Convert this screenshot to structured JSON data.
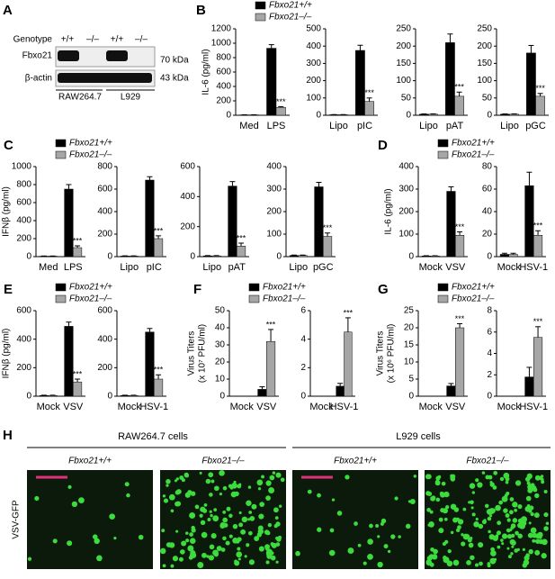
{
  "blot": {
    "panel": "A",
    "row_labels": [
      "Genotype",
      "Fbxo21",
      "β-actin"
    ],
    "genotypes": [
      "+/+",
      "–/–",
      "+/+",
      "–/–"
    ],
    "markers": [
      "70 kDa",
      "43 kDa"
    ],
    "cell_lines": [
      "RAW264.7",
      "L929"
    ]
  },
  "microscopy": {
    "panel": "H",
    "cell_lines": [
      "RAW264.7 cells",
      "L929 cells"
    ],
    "genotypes": [
      "Fbxo21+/+",
      "Fbxo21–/–",
      "Fbxo21+/+",
      "Fbxo21–/–"
    ],
    "row_label": "VSV-GFP"
  },
  "chart_data": [
    {
      "type": "bar",
      "panel": "B",
      "ylabel": "IL-6 (pg/ml)",
      "legend": true,
      "categories": [
        "Med",
        "LPS"
      ],
      "ylim": [
        0,
        1200
      ],
      "yticks": [
        0,
        200,
        400,
        600,
        800,
        1000,
        1200
      ],
      "series": [
        {
          "name": "Fbxo21+/+",
          "color": "#000000",
          "values": [
            5,
            930
          ],
          "errors": [
            2,
            50
          ]
        },
        {
          "name": "Fbxo21–/–",
          "color": "#a6a6a6",
          "values": [
            5,
            110
          ],
          "errors": [
            2,
            10
          ],
          "significance": [
            null,
            "***"
          ]
        }
      ]
    },
    {
      "type": "bar",
      "categories": [
        "Lipo",
        "pIC"
      ],
      "ylim": [
        0,
        500
      ],
      "yticks": [
        0,
        100,
        200,
        300,
        400,
        500
      ],
      "series": [
        {
          "color": "#000000",
          "values": [
            3,
            375
          ],
          "errors": [
            1,
            30
          ]
        },
        {
          "color": "#a6a6a6",
          "values": [
            3,
            80
          ],
          "errors": [
            1,
            20
          ],
          "significance": [
            null,
            "***"
          ]
        }
      ]
    },
    {
      "type": "bar",
      "categories": [
        "Lipo",
        "pAT"
      ],
      "ylim": [
        0,
        250
      ],
      "yticks": [
        0,
        50,
        100,
        150,
        200,
        250
      ],
      "series": [
        {
          "color": "#000000",
          "values": [
            3,
            210
          ],
          "errors": [
            1,
            25
          ]
        },
        {
          "color": "#a6a6a6",
          "values": [
            3,
            55
          ],
          "errors": [
            1,
            12
          ],
          "significance": [
            null,
            "***"
          ]
        }
      ]
    },
    {
      "type": "bar",
      "categories": [
        "Lipo",
        "pGC"
      ],
      "ylim": [
        0,
        250
      ],
      "yticks": [
        0,
        50,
        100,
        150,
        200,
        250
      ],
      "series": [
        {
          "color": "#000000",
          "values": [
            3,
            180
          ],
          "errors": [
            1,
            22
          ]
        },
        {
          "color": "#a6a6a6",
          "values": [
            3,
            55
          ],
          "errors": [
            1,
            8
          ],
          "significance": [
            null,
            "***"
          ]
        }
      ]
    },
    {
      "type": "bar",
      "panel": "C",
      "ylabel": "IFNβ (pg/ml)",
      "legend": true,
      "categories": [
        "Med",
        "LPS"
      ],
      "ylim": [
        0,
        1000
      ],
      "yticks": [
        0,
        200,
        400,
        600,
        800,
        1000
      ],
      "series": [
        {
          "name": "Fbxo21+/+",
          "color": "#000000",
          "values": [
            5,
            750
          ],
          "errors": [
            2,
            50
          ]
        },
        {
          "name": "Fbxo21–/–",
          "color": "#a6a6a6",
          "values": [
            5,
            100
          ],
          "errors": [
            2,
            20
          ],
          "significance": [
            null,
            "***"
          ]
        }
      ]
    },
    {
      "type": "bar",
      "categories": [
        "Lipo",
        "pIC"
      ],
      "ylim": [
        0,
        800
      ],
      "yticks": [
        0,
        200,
        400,
        600,
        800
      ],
      "series": [
        {
          "color": "#000000",
          "values": [
            5,
            680
          ],
          "errors": [
            2,
            30
          ]
        },
        {
          "color": "#a6a6a6",
          "values": [
            5,
            160
          ],
          "errors": [
            2,
            25
          ],
          "significance": [
            null,
            "***"
          ]
        }
      ]
    },
    {
      "type": "bar",
      "categories": [
        "Lipo",
        "pAT"
      ],
      "ylim": [
        0,
        600
      ],
      "yticks": [
        0,
        200,
        400,
        600
      ],
      "series": [
        {
          "color": "#000000",
          "values": [
            5,
            470
          ],
          "errors": [
            2,
            30
          ]
        },
        {
          "color": "#a6a6a6",
          "values": [
            5,
            70
          ],
          "errors": [
            2,
            20
          ],
          "significance": [
            null,
            "***"
          ]
        }
      ]
    },
    {
      "type": "bar",
      "categories": [
        "Lipo",
        "pGC"
      ],
      "ylim": [
        0,
        400
      ],
      "yticks": [
        0,
        100,
        200,
        300,
        400
      ],
      "series": [
        {
          "color": "#000000",
          "values": [
            5,
            310
          ],
          "errors": [
            2,
            20
          ]
        },
        {
          "color": "#a6a6a6",
          "values": [
            5,
            90
          ],
          "errors": [
            2,
            15
          ],
          "significance": [
            null,
            "***"
          ]
        }
      ]
    },
    {
      "type": "bar",
      "panel": "D",
      "ylabel": "IL-6 (pg/ml)",
      "legend": true,
      "categories": [
        "Mock",
        "VSV"
      ],
      "ylim": [
        0,
        400
      ],
      "yticks": [
        0,
        100,
        200,
        300,
        400
      ],
      "series": [
        {
          "name": "Fbxo21+/+",
          "color": "#000000",
          "values": [
            3,
            290
          ],
          "errors": [
            1,
            20
          ]
        },
        {
          "name": "Fbxo21–/–",
          "color": "#a6a6a6",
          "values": [
            3,
            95
          ],
          "errors": [
            1,
            15
          ],
          "significance": [
            null,
            "***"
          ]
        }
      ]
    },
    {
      "type": "bar",
      "categories": [
        "Mock",
        "HSV-1"
      ],
      "ylim": [
        0,
        80
      ],
      "yticks": [
        0,
        20,
        40,
        60,
        80
      ],
      "series": [
        {
          "color": "#000000",
          "values": [
            2,
            63
          ],
          "errors": [
            1,
            12
          ]
        },
        {
          "color": "#a6a6a6",
          "values": [
            2,
            19
          ],
          "errors": [
            1,
            4
          ],
          "significance": [
            null,
            "***"
          ]
        }
      ]
    },
    {
      "type": "bar",
      "panel": "E",
      "ylabel": "IFNβ (pg/ml)",
      "legend": true,
      "categories": [
        "Mock",
        "VSV"
      ],
      "ylim": [
        0,
        600
      ],
      "yticks": [
        0,
        200,
        400,
        600
      ],
      "series": [
        {
          "name": "Fbxo21+/+",
          "color": "#000000",
          "values": [
            5,
            490
          ],
          "errors": [
            2,
            30
          ]
        },
        {
          "name": "Fbxo21–/–",
          "color": "#a6a6a6",
          "values": [
            5,
            100
          ],
          "errors": [
            2,
            20
          ],
          "significance": [
            null,
            "***"
          ]
        }
      ]
    },
    {
      "type": "bar",
      "categories": [
        "Mock",
        "HSV-1"
      ],
      "ylim": [
        0,
        600
      ],
      "yticks": [
        0,
        200,
        400,
        600
      ],
      "series": [
        {
          "color": "#000000",
          "values": [
            5,
            450
          ],
          "errors": [
            2,
            25
          ]
        },
        {
          "color": "#a6a6a6",
          "values": [
            5,
            120
          ],
          "errors": [
            2,
            30
          ],
          "significance": [
            null,
            "***"
          ]
        }
      ]
    },
    {
      "type": "bar",
      "panel": "F",
      "ylabel": [
        "Virus Titers",
        "(x 10⁷ PFU/ml)"
      ],
      "legend": true,
      "categories": [
        "Mock",
        "VSV"
      ],
      "ylim": [
        0,
        50
      ],
      "yticks": [
        0,
        10,
        20,
        30,
        40,
        50
      ],
      "series": [
        {
          "name": "Fbxo21+/+",
          "color": "#000000",
          "values": [
            0,
            4
          ],
          "errors": [
            0,
            1.5
          ]
        },
        {
          "name": "Fbxo21–/–",
          "color": "#a6a6a6",
          "values": [
            0,
            32
          ],
          "errors": [
            0,
            7
          ],
          "significance": [
            null,
            "***"
          ]
        }
      ]
    },
    {
      "type": "bar",
      "categories": [
        "Mock",
        "HSV-1"
      ],
      "ylim": [
        0,
        6
      ],
      "yticks": [
        0,
        2,
        4,
        6
      ],
      "series": [
        {
          "color": "#000000",
          "values": [
            0,
            0.7
          ],
          "errors": [
            0,
            0.2
          ]
        },
        {
          "color": "#a6a6a6",
          "values": [
            0,
            4.5
          ],
          "errors": [
            0,
            1
          ],
          "significance": [
            null,
            "***"
          ]
        }
      ]
    },
    {
      "type": "bar",
      "panel": "G",
      "ylabel": [
        "Virus Titers",
        "(x 10⁶ PFU/ml)"
      ],
      "legend": true,
      "categories": [
        "Mock",
        "VSV"
      ],
      "ylim": [
        0,
        25
      ],
      "yticks": [
        0,
        5,
        10,
        15,
        20,
        25
      ],
      "series": [
        {
          "name": "Fbxo21+/+",
          "color": "#000000",
          "values": [
            0,
            3
          ],
          "errors": [
            0,
            0.7
          ]
        },
        {
          "name": "Fbxo21–/–",
          "color": "#a6a6a6",
          "values": [
            0,
            20
          ],
          "errors": [
            0,
            1.2
          ],
          "significance": [
            null,
            "***"
          ]
        }
      ]
    },
    {
      "type": "bar",
      "categories": [
        "Mock",
        "HSV-1"
      ],
      "ylim": [
        0,
        8
      ],
      "yticks": [
        0,
        2,
        4,
        6,
        8
      ],
      "series": [
        {
          "color": "#000000",
          "values": [
            0,
            1.8
          ],
          "errors": [
            0,
            0.9
          ]
        },
        {
          "color": "#a6a6a6",
          "values": [
            0,
            5.5
          ],
          "errors": [
            0,
            1
          ],
          "significance": [
            null,
            "***"
          ]
        }
      ]
    }
  ]
}
